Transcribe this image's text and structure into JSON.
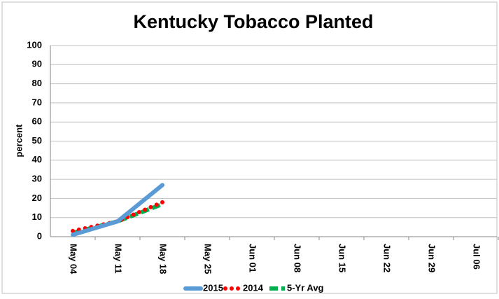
{
  "chart_data": {
    "type": "line",
    "title": "Kentucky Tobacco Planted",
    "y_label": "percent",
    "categories": [
      "May 04",
      "May 11",
      "May 18",
      "May 25",
      "Jun 01",
      "Jun 08",
      "Jun 15",
      "Jun 22",
      "Jun 29",
      "Jul 06"
    ],
    "series": [
      {
        "name": "2015",
        "color": "#5b9bd5",
        "style": "solid",
        "values": [
          1,
          8,
          27,
          null,
          null,
          null,
          null,
          null,
          null,
          null
        ]
      },
      {
        "name": "2014",
        "color": "#ff0000",
        "style": "dotted",
        "values": [
          3,
          8,
          18,
          null,
          null,
          null,
          null,
          null,
          null,
          null
        ]
      },
      {
        "name": "5-Yr Avg",
        "color": "#00b050",
        "style": "dashed",
        "values": [
          2,
          8,
          17,
          null,
          null,
          null,
          null,
          null,
          null,
          null
        ]
      }
    ],
    "ylim": [
      0,
      100
    ],
    "yticks": [
      0,
      10,
      20,
      30,
      40,
      50,
      60,
      70,
      80,
      90,
      100
    ],
    "grid": true,
    "legend": "bottom"
  }
}
